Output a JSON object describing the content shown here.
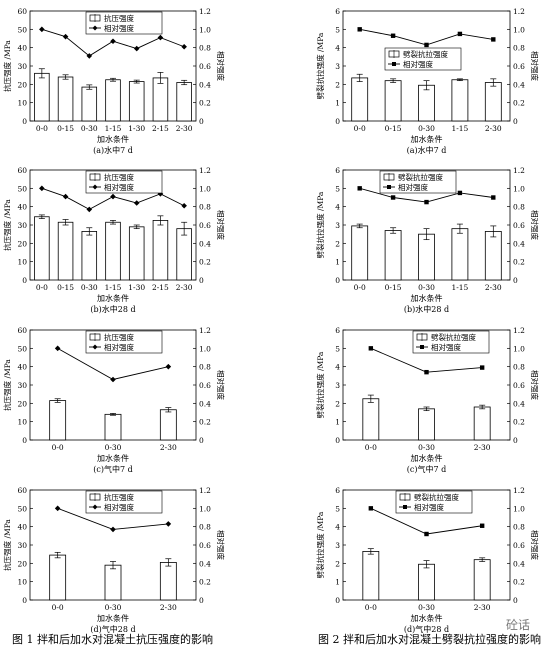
{
  "captions": {
    "fig1": "图 1   拌和后加水对混凝土抗压强度的影响",
    "fig2": "图 2   拌和后加水对混凝土劈裂抗拉强度的影响"
  },
  "watermark": "砼话",
  "colors": {
    "axis": "#000000",
    "bar_fill": "#ffffff",
    "line": "#000000"
  },
  "chart_data": [
    {
      "type": "bar+line",
      "title": "(a)水中7 d",
      "xlabel": "加水条件",
      "ylabel": "抗压强度 /MPa",
      "y2label": "相对强度",
      "ylim": [
        0,
        60
      ],
      "yticks": [
        0,
        10,
        20,
        30,
        40,
        50,
        60
      ],
      "y2lim": [
        0,
        1.2
      ],
      "y2ticks": [
        "0",
        "0.2",
        "0.4",
        "0.6",
        "0.8",
        "1.0",
        "1.2"
      ],
      "categories": [
        "0-0",
        "0-15",
        "0-30",
        "1-15",
        "1-30",
        "2-15",
        "2-30"
      ],
      "bar_series": {
        "name": "抗压强度",
        "values": [
          26.0,
          24.0,
          18.5,
          22.5,
          21.5,
          23.5,
          21.0
        ],
        "errors": [
          2.5,
          1.2,
          1.2,
          0.8,
          0.8,
          3.0,
          1.2
        ]
      },
      "line_series": {
        "name": "相对强度",
        "values": [
          1.0,
          0.92,
          0.71,
          0.87,
          0.79,
          0.91,
          0.81
        ]
      },
      "legend": "top-center"
    },
    {
      "type": "bar+line",
      "title": "(b)水中28 d",
      "xlabel": "加水条件",
      "ylabel": "抗压强度 /MPa",
      "y2label": "相对强度",
      "ylim": [
        0,
        60
      ],
      "yticks": [
        0,
        10,
        20,
        30,
        40,
        50,
        60
      ],
      "y2lim": [
        0,
        1.2
      ],
      "y2ticks": [
        "0",
        "0.2",
        "0.4",
        "0.6",
        "0.8",
        "1.0",
        "1.2"
      ],
      "categories": [
        "0-0",
        "0-15",
        "0-30",
        "1-15",
        "1-30",
        "2-15",
        "2-30"
      ],
      "bar_series": {
        "name": "抗压强度",
        "values": [
          34.5,
          31.5,
          26.5,
          31.5,
          29.0,
          32.5,
          28.0
        ],
        "errors": [
          1.0,
          1.5,
          2.0,
          1.0,
          1.0,
          2.5,
          3.5
        ]
      },
      "line_series": {
        "name": "相对强度",
        "values": [
          1.0,
          0.91,
          0.77,
          0.91,
          0.84,
          0.94,
          0.81
        ]
      },
      "legend": "top-center"
    },
    {
      "type": "bar+line",
      "title": "(c)气中7 d",
      "xlabel": "加水条件",
      "ylabel": "抗压强度 /MPa",
      "y2label": "相对强度",
      "ylim": [
        0,
        60
      ],
      "yticks": [
        0,
        10,
        20,
        30,
        40,
        50,
        60
      ],
      "y2lim": [
        0,
        1.2
      ],
      "y2ticks": [
        "0",
        "0.2",
        "0.4",
        "0.6",
        "0.8",
        "1.0",
        "1.2"
      ],
      "categories": [
        "0-0",
        "0-30",
        "2-30"
      ],
      "bar_series": {
        "name": "抗压强度",
        "values": [
          21.5,
          14.0,
          16.5
        ],
        "errors": [
          1.0,
          0.5,
          1.2
        ]
      },
      "line_series": {
        "name": "相对强度",
        "values": [
          1.0,
          0.66,
          0.8
        ]
      },
      "legend": "top-center"
    },
    {
      "type": "bar+line",
      "title": "(d)气中28 d",
      "xlabel": "加水条件",
      "ylabel": "抗压强度 /MPa",
      "y2label": "相对强度",
      "ylim": [
        0,
        60
      ],
      "yticks": [
        0,
        10,
        20,
        30,
        40,
        50,
        60
      ],
      "y2lim": [
        0,
        1.2
      ],
      "y2ticks": [
        "0",
        "0.2",
        "0.4",
        "0.6",
        "0.8",
        "1.0",
        "1.2"
      ],
      "categories": [
        "0-0",
        "0-30",
        "2-30"
      ],
      "bar_series": {
        "name": "抗压强度",
        "values": [
          24.5,
          19.0,
          20.5
        ],
        "errors": [
          1.5,
          2.0,
          2.0
        ]
      },
      "line_series": {
        "name": "相对强度",
        "values": [
          1.0,
          0.77,
          0.83
        ]
      },
      "legend": "top-center"
    },
    {
      "type": "bar+line",
      "title": "(a)水中7 d",
      "xlabel": "加水条件",
      "ylabel": "劈裂抗拉强度 /MPa",
      "y2label": "相对强度",
      "ylim": [
        0,
        6
      ],
      "yticks": [
        0,
        1,
        2,
        3,
        4,
        5,
        6
      ],
      "y2lim": [
        0,
        1.2
      ],
      "y2ticks": [
        "0",
        "0.2",
        "0.4",
        "0.6",
        "0.8",
        "1.0",
        "1.2"
      ],
      "categories": [
        "0-0",
        "0-15",
        "0-30",
        "1-15",
        "2-30"
      ],
      "bar_series": {
        "name": "劈裂抗拉强度",
        "values": [
          2.35,
          2.2,
          1.95,
          2.25,
          2.1
        ],
        "errors": [
          0.2,
          0.1,
          0.25,
          0.05,
          0.2
        ]
      },
      "line_series": {
        "name": "相对强度",
        "values": [
          1.0,
          0.93,
          0.83,
          0.95,
          0.89
        ]
      },
      "legend": "center"
    },
    {
      "type": "bar+line",
      "title": "(b)水中28 d",
      "xlabel": "加水条件",
      "ylabel": "劈裂抗拉强度 /MPa",
      "y2label": "相对强度",
      "ylim": [
        0,
        6
      ],
      "yticks": [
        0,
        1,
        2,
        3,
        4,
        5,
        6
      ],
      "y2lim": [
        0,
        1.2
      ],
      "y2ticks": [
        "0",
        "0.2",
        "0.4",
        "0.6",
        "0.8",
        "1.0",
        "1.2"
      ],
      "categories": [
        "0-0",
        "0-15",
        "0-30",
        "1-15",
        "2-30"
      ],
      "bar_series": {
        "name": "劈裂抗拉强度",
        "values": [
          2.95,
          2.7,
          2.5,
          2.8,
          2.65
        ],
        "errors": [
          0.1,
          0.15,
          0.3,
          0.25,
          0.3
        ]
      },
      "line_series": {
        "name": "相对强度",
        "values": [
          1.0,
          0.9,
          0.85,
          0.95,
          0.9
        ]
      },
      "legend": "top-center"
    },
    {
      "type": "bar+line",
      "title": "(c)气中7 d",
      "xlabel": "加水条件",
      "ylabel": "劈裂抗拉强度 /MPa",
      "y2label": "相对强度",
      "ylim": [
        0,
        6
      ],
      "yticks": [
        0,
        1,
        2,
        3,
        4,
        5,
        6
      ],
      "y2lim": [
        0,
        1.2
      ],
      "y2ticks": [
        "0",
        "0.2",
        "0.4",
        "0.6",
        "0.8",
        "1.0",
        "1.2"
      ],
      "categories": [
        "0-0",
        "0-30",
        "2-30"
      ],
      "bar_series": {
        "name": "劈裂抗拉强度",
        "values": [
          2.25,
          1.7,
          1.8
        ],
        "errors": [
          0.2,
          0.1,
          0.1
        ]
      },
      "line_series": {
        "name": "相对强度",
        "values": [
          1.0,
          0.74,
          0.79
        ]
      },
      "legend": "top-right"
    },
    {
      "type": "bar+line",
      "title": "(d)气中28 d",
      "xlabel": "加水条件",
      "ylabel": "劈裂抗拉强度 /MPa",
      "y2label": "相对强度",
      "ylim": [
        0,
        6
      ],
      "yticks": [
        0,
        1,
        2,
        3,
        4,
        5,
        6
      ],
      "y2lim": [
        0,
        1.2
      ],
      "y2ticks": [
        "0",
        "0.2",
        "0.4",
        "0.6",
        "0.8",
        "1.0",
        "1.2"
      ],
      "categories": [
        "0-0",
        "0-30",
        "2-30"
      ],
      "bar_series": {
        "name": "劈裂抗拉强度",
        "values": [
          2.65,
          1.95,
          2.2
        ],
        "errors": [
          0.15,
          0.2,
          0.1
        ]
      },
      "line_series": {
        "name": "相对强度",
        "values": [
          1.0,
          0.72,
          0.81
        ]
      },
      "legend": "top-center"
    }
  ]
}
